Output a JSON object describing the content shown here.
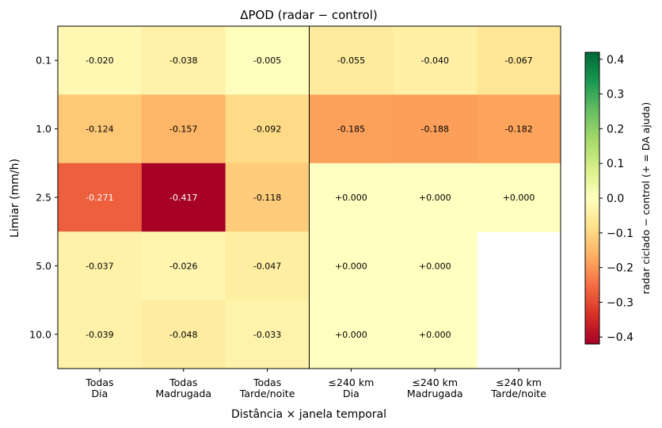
{
  "chart_data": {
    "type": "heatmap",
    "title": "ΔPOD  (radar − control)",
    "xlabel": "Distância × janela temporal",
    "ylabel": "Limiar (mm/h)",
    "x_categories": [
      [
        "Todas",
        "Dia"
      ],
      [
        "Todas",
        "Madrugada"
      ],
      [
        "Todas",
        "Tarde/noite"
      ],
      [
        "≤240 km",
        "Dia"
      ],
      [
        "≤240 km",
        "Madrugada"
      ],
      [
        "≤240 km",
        "Tarde/noite"
      ]
    ],
    "y_categories": [
      "0.1",
      "1.0",
      "2.5",
      "5.0",
      "10.0"
    ],
    "values": [
      [
        -0.02,
        -0.038,
        -0.005,
        -0.055,
        -0.04,
        -0.067
      ],
      [
        -0.124,
        -0.157,
        -0.092,
        -0.185,
        -0.188,
        -0.182
      ],
      [
        -0.271,
        -0.417,
        -0.118,
        0.0,
        0.0,
        0.0
      ],
      [
        -0.037,
        -0.026,
        -0.047,
        0.0,
        0.0,
        null
      ],
      [
        -0.039,
        -0.048,
        -0.033,
        0.0,
        0.0,
        null
      ]
    ],
    "labels": [
      [
        "-0.020",
        "-0.038",
        "-0.005",
        "-0.055",
        "-0.040",
        "-0.067"
      ],
      [
        "-0.124",
        "-0.157",
        "-0.092",
        "-0.185",
        "-0.188",
        "-0.182"
      ],
      [
        "-0.271",
        "-0.417",
        "-0.118",
        "+0.000",
        "+0.000",
        "+0.000"
      ],
      [
        "-0.037",
        "-0.026",
        "-0.047",
        "+0.000",
        "+0.000",
        ""
      ],
      [
        "-0.039",
        "-0.048",
        "-0.033",
        "+0.000",
        "+0.000",
        ""
      ]
    ],
    "colormap": "RdYlGn",
    "vmin": -0.42,
    "vmax": 0.42,
    "divider_after_column": 3,
    "colorbar": {
      "label": "radar ciclado − control  (+ = DA ajuda)",
      "ticks": [
        "0.4",
        "0.3",
        "0.2",
        "0.1",
        "0.0",
        "−0.1",
        "−0.2",
        "−0.3",
        "−0.4"
      ],
      "tick_values": [
        0.4,
        0.3,
        0.2,
        0.1,
        0.0,
        -0.1,
        -0.2,
        -0.3,
        -0.4
      ]
    }
  }
}
